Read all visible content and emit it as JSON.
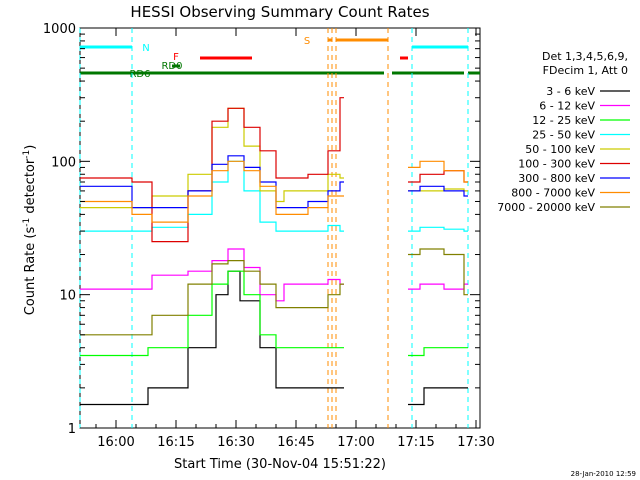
{
  "chart_data": {
    "type": "line",
    "title": "HESSI Observing Summary Count Rates",
    "xlabel": "Start Time (30-Nov-04 15:51:22)",
    "ylabel_main": "Count Rate (s",
    "ylabel_sup1": "-1",
    "ylabel_mid": " detector",
    "ylabel_sup2": "-1",
    "ylabel_end": ")",
    "timestamp": "28-Jan-2010 12:59",
    "yscale": "log",
    "ylim": [
      1,
      1000
    ],
    "xlim": [
      "15:51",
      "17:31"
    ],
    "x_ticks": [
      "16:00",
      "16:15",
      "16:30",
      "16:45",
      "17:00",
      "17:15",
      "17:30"
    ],
    "y_ticks": [
      "1",
      "10",
      "100",
      "1000"
    ],
    "legend_header": [
      "Det 1,3,4,5,6,9,",
      "FDecim 1, Att 0"
    ],
    "legend_position": "right",
    "flags": {
      "N": {
        "label": "N",
        "color": "#00ffff",
        "segments": [
          [
            "15:51",
            "16:04"
          ],
          [
            "17:14",
            "17:28"
          ]
        ]
      },
      "F": {
        "label": "F",
        "color": "#ff0000",
        "segments": [
          [
            "16:21",
            "16:34"
          ],
          [
            "17:11",
            "17:13"
          ]
        ]
      },
      "S": {
        "label": "S",
        "color": "#ff8c00",
        "segments": [
          [
            "16:53",
            "16:54"
          ],
          [
            "16:55",
            "17:08"
          ]
        ]
      },
      "RD0": {
        "label": "RD0",
        "color": "#007700",
        "segments": [
          [
            "16:14",
            "16:16"
          ]
        ]
      },
      "RD6": {
        "label": "RD6",
        "color": "#007700",
        "segments": [
          [
            "15:51",
            "16:08"
          ],
          [
            "16:08",
            "16:39"
          ],
          [
            "16:39",
            "17:07"
          ],
          [
            "17:09",
            "17:27"
          ],
          [
            "17:28",
            "17:31"
          ]
        ]
      }
    },
    "series": [
      {
        "name": "3 - 6 keV",
        "color": "#000000",
        "t": [
          "15:51",
          "16:04",
          "16:08",
          "16:18",
          "16:25",
          "16:28",
          "16:31",
          "16:36",
          "16:40",
          "16:42",
          "16:50",
          "16:56",
          "16:57",
          "17:10",
          "17:13",
          "17:17",
          "17:22",
          "17:27",
          "17:28"
        ],
        "values": [
          1.5,
          1.5,
          2,
          4,
          10,
          15,
          9,
          4,
          2,
          2,
          2,
          2,
          2,
          null,
          1.5,
          2,
          2,
          2,
          2
        ]
      },
      {
        "name": "6 - 12 keV",
        "color": "#ff00ff",
        "t": [
          "15:51",
          "16:04",
          "16:09",
          "16:18",
          "16:24",
          "16:28",
          "16:32",
          "16:36",
          "16:40",
          "16:42",
          "16:48",
          "16:53",
          "16:56",
          "16:57",
          "17:10",
          "17:13",
          "17:16",
          "17:22",
          "17:27",
          "17:28"
        ],
        "values": [
          11,
          11,
          14,
          15,
          18,
          22,
          16,
          10,
          9,
          12,
          12,
          13,
          12,
          12,
          null,
          11,
          12,
          11,
          12,
          12
        ]
      },
      {
        "name": "12 - 25 keV",
        "color": "#00ff00",
        "t": [
          "15:51",
          "16:04",
          "16:08",
          "16:18",
          "16:24",
          "16:28",
          "16:32",
          "16:36",
          "16:40",
          "16:42",
          "16:50",
          "16:56",
          "16:57",
          "17:10",
          "17:13",
          "17:17",
          "17:22",
          "17:27",
          "17:28"
        ],
        "values": [
          3.5,
          3.5,
          4,
          7,
          12,
          15,
          10,
          5,
          4,
          4,
          4,
          4,
          4,
          null,
          3.5,
          4,
          4,
          4,
          4
        ]
      },
      {
        "name": "25 - 50 keV",
        "color": "#00ffff",
        "t": [
          "15:51",
          "16:04",
          "16:09",
          "16:18",
          "16:24",
          "16:28",
          "16:32",
          "16:36",
          "16:40",
          "16:42",
          "16:48",
          "16:53",
          "16:56",
          "16:57",
          "17:10",
          "17:13",
          "17:16",
          "17:22",
          "17:27",
          "17:28"
        ],
        "values": [
          30,
          30,
          32,
          40,
          70,
          100,
          60,
          35,
          30,
          30,
          30,
          33,
          30,
          30,
          null,
          30,
          32,
          31,
          30,
          30
        ]
      },
      {
        "name": "50 - 100 keV",
        "color": "#cccc00",
        "t": [
          "15:51",
          "16:04",
          "16:09",
          "16:18",
          "16:24",
          "16:28",
          "16:32",
          "16:36",
          "16:40",
          "16:42",
          "16:48",
          "16:53",
          "16:56",
          "16:57",
          "17:10",
          "17:13",
          "17:16",
          "17:22",
          "17:27",
          "17:28"
        ],
        "values": [
          45,
          45,
          55,
          80,
          180,
          250,
          130,
          60,
          50,
          60,
          60,
          80,
          75,
          75,
          null,
          60,
          60,
          62,
          60,
          60
        ]
      },
      {
        "name": "100 - 300 keV",
        "color": "#dd0000",
        "t": [
          "15:51",
          "16:04",
          "16:09",
          "16:18",
          "16:24",
          "16:28",
          "16:32",
          "16:36",
          "16:40",
          "16:42",
          "16:48",
          "16:53",
          "16:56",
          "16:57",
          "17:10",
          "17:13",
          "17:16",
          "17:22",
          "17:27",
          "17:28"
        ],
        "values": [
          75,
          70,
          25,
          60,
          200,
          250,
          180,
          120,
          75,
          75,
          80,
          120,
          300,
          300,
          null,
          70,
          80,
          85,
          70,
          70
        ]
      },
      {
        "name": "300 - 800 keV",
        "color": "#0000ff",
        "t": [
          "15:51",
          "16:04",
          "16:09",
          "16:18",
          "16:24",
          "16:28",
          "16:32",
          "16:36",
          "16:40",
          "16:42",
          "16:48",
          "16:53",
          "16:56",
          "16:57",
          "17:10",
          "17:13",
          "17:16",
          "17:22",
          "17:27",
          "17:28"
        ],
        "values": [
          65,
          45,
          45,
          60,
          95,
          110,
          90,
          70,
          45,
          45,
          50,
          60,
          70,
          70,
          null,
          60,
          65,
          60,
          55,
          55
        ]
      },
      {
        "name": "800 - 7000 keV",
        "color": "#ff8c00",
        "t": [
          "15:51",
          "16:04",
          "16:09",
          "16:18",
          "16:24",
          "16:28",
          "16:32",
          "16:36",
          "16:40",
          "16:42",
          "16:48",
          "16:53",
          "16:56",
          "16:57",
          "17:10",
          "17:13",
          "17:16",
          "17:22",
          "17:27",
          "17:28"
        ],
        "values": [
          50,
          40,
          35,
          55,
          85,
          100,
          85,
          65,
          40,
          40,
          45,
          55,
          55,
          55,
          null,
          90,
          100,
          85,
          70,
          70
        ]
      },
      {
        "name": "7000 - 20000 keV",
        "color": "#808000",
        "t": [
          "15:51",
          "16:04",
          "16:09",
          "16:18",
          "16:24",
          "16:28",
          "16:32",
          "16:36",
          "16:40",
          "16:42",
          "16:48",
          "16:53",
          "16:56",
          "16:57",
          "17:10",
          "17:13",
          "17:16",
          "17:22",
          "17:27",
          "17:28"
        ],
        "values": [
          5,
          5,
          7,
          12,
          17,
          18,
          15,
          12,
          8,
          8,
          8,
          10,
          12,
          12,
          null,
          20,
          22,
          20,
          10,
          10
        ]
      }
    ]
  }
}
